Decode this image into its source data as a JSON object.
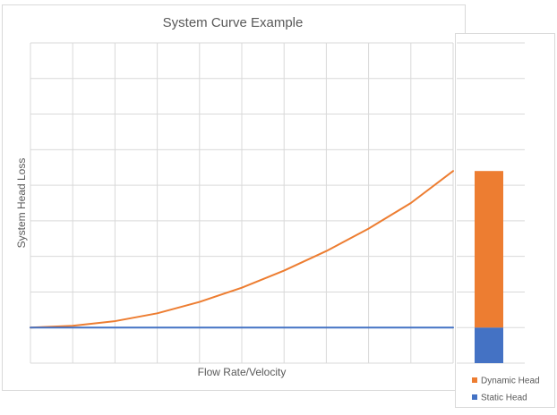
{
  "chart_data": {
    "type": "line",
    "title": "System Curve Example",
    "xlabel": "Flow Rate/Velocity",
    "ylabel": "System Head Loss",
    "x": [
      0,
      1,
      2,
      3,
      4,
      5,
      6,
      7,
      8,
      9,
      10
    ],
    "xlim": [
      0,
      10
    ],
    "ylim": [
      -1,
      8
    ],
    "x_ticks": 10,
    "y_ticks": 9,
    "grid": true,
    "series": [
      {
        "name": "",
        "color": "#ED7D31",
        "values": [
          0,
          0.05,
          0.18,
          0.4,
          0.72,
          1.12,
          1.6,
          2.15,
          2.78,
          3.5,
          4.4
        ]
      },
      {
        "name": "",
        "color": "#4472C4",
        "values": [
          0,
          0,
          0,
          0,
          0,
          0,
          0,
          0,
          0,
          0,
          0
        ]
      }
    ],
    "stacked_bar": {
      "type": "stacked-bar",
      "segments": [
        {
          "name": "Static Head",
          "value": 1,
          "color": "#4472C4"
        },
        {
          "name": "Dynamic Head",
          "value": 4.4,
          "color": "#ED7D31"
        }
      ],
      "ylim": [
        -1,
        8
      ],
      "legend": [
        {
          "name": "Dynamic Head",
          "color": "#ED7D31"
        },
        {
          "name": "Static Head",
          "color": "#4472C4"
        }
      ],
      "legend_position": "bottom"
    }
  },
  "colors": {
    "grid": "#D9D9D9",
    "frame": "#D9D9D9",
    "text": "#595959",
    "axis_line": "#BFBFBF"
  }
}
